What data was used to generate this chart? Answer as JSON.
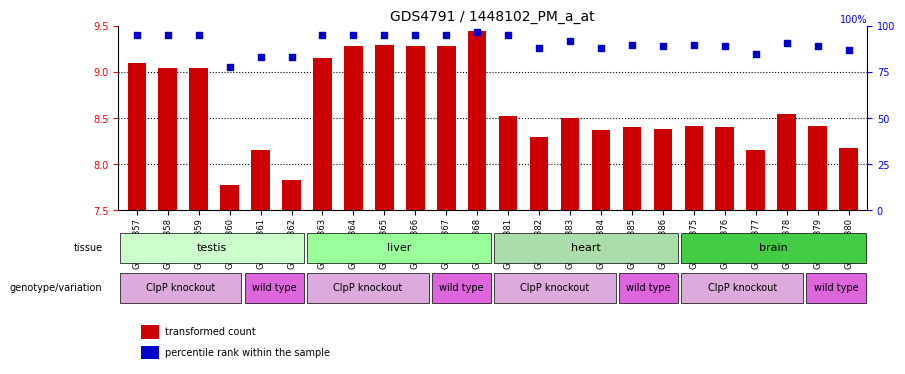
{
  "title": "GDS4791 / 1448102_PM_a_at",
  "samples": [
    "GSM988357",
    "GSM988358",
    "GSM988359",
    "GSM988360",
    "GSM988361",
    "GSM988362",
    "GSM988363",
    "GSM988364",
    "GSM988365",
    "GSM988366",
    "GSM988367",
    "GSM988368",
    "GSM988381",
    "GSM988382",
    "GSM988383",
    "GSM988384",
    "GSM988385",
    "GSM988386",
    "GSM988375",
    "GSM988376",
    "GSM988377",
    "GSM988378",
    "GSM988379",
    "GSM988380"
  ],
  "bar_values": [
    9.1,
    9.05,
    9.05,
    7.78,
    8.15,
    7.83,
    9.15,
    9.28,
    9.3,
    9.28,
    9.28,
    9.45,
    8.52,
    8.3,
    8.5,
    8.37,
    8.4,
    8.38,
    8.42,
    8.4,
    8.15,
    8.55,
    8.42,
    8.18
  ],
  "percentile_values": [
    95,
    95,
    95,
    78,
    83,
    83,
    95,
    95,
    95,
    95,
    95,
    97,
    95,
    88,
    92,
    88,
    90,
    89,
    90,
    89,
    85,
    91,
    89,
    87
  ],
  "ylim_left": [
    7.5,
    9.5
  ],
  "ylim_right": [
    0,
    100
  ],
  "yticks_left": [
    7.5,
    8.0,
    8.5,
    9.0,
    9.5
  ],
  "yticks_right": [
    0,
    25,
    50,
    75,
    100
  ],
  "bar_color": "#cc0000",
  "dot_color": "#0000cc",
  "tissue_groups": [
    {
      "label": "testis",
      "start": 0,
      "end": 6,
      "color": "#ccffcc"
    },
    {
      "label": "liver",
      "start": 6,
      "end": 12,
      "color": "#99ff99"
    },
    {
      "label": "heart",
      "start": 12,
      "end": 18,
      "color": "#aaddaa"
    },
    {
      "label": "brain",
      "start": 18,
      "end": 24,
      "color": "#44cc44"
    }
  ],
  "genotype_groups": [
    {
      "label": "ClpP knockout",
      "start": 0,
      "end": 4,
      "color": "#ddaadd"
    },
    {
      "label": "wild type",
      "start": 4,
      "end": 6,
      "color": "#dd66dd"
    },
    {
      "label": "ClpP knockout",
      "start": 6,
      "end": 10,
      "color": "#ddaadd"
    },
    {
      "label": "wild type",
      "start": 10,
      "end": 12,
      "color": "#dd66dd"
    },
    {
      "label": "ClpP knockout",
      "start": 12,
      "end": 16,
      "color": "#ddaadd"
    },
    {
      "label": "wild type",
      "start": 16,
      "end": 18,
      "color": "#dd66dd"
    },
    {
      "label": "ClpP knockout",
      "start": 18,
      "end": 22,
      "color": "#ddaadd"
    },
    {
      "label": "wild type",
      "start": 22,
      "end": 24,
      "color": "#dd66dd"
    }
  ],
  "legend_items": [
    {
      "label": "transformed count",
      "color": "#cc0000",
      "marker": "s"
    },
    {
      "label": "percentile rank within the sample",
      "color": "#0000cc",
      "marker": "s"
    }
  ],
  "background_color": "#ffffff",
  "grid_color": "#aaaaaa"
}
